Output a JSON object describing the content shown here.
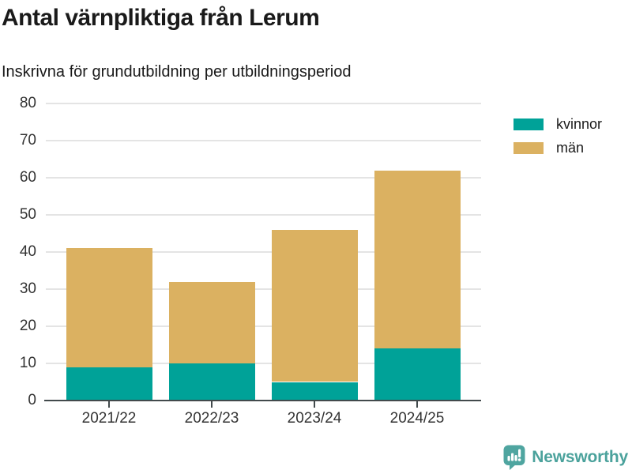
{
  "chart_data": {
    "type": "bar",
    "stacked": true,
    "title": "Antal värnpliktiga från Lerum",
    "subtitle": "Inskrivna för grundutbildning per utbildningsperiod",
    "categories": [
      "2021/22",
      "2022/23",
      "2023/24",
      "2024/25"
    ],
    "series": [
      {
        "name": "kvinnor",
        "color": "#00a298",
        "values": [
          9,
          10,
          5,
          14
        ]
      },
      {
        "name": "män",
        "color": "#dbb161",
        "values": [
          32,
          22,
          41,
          48
        ]
      }
    ],
    "ylim": [
      0,
      80
    ],
    "yticks": [
      0,
      10,
      20,
      30,
      40,
      50,
      60,
      70,
      80
    ],
    "grid": true,
    "legend_position": "right"
  },
  "footer": {
    "brand": "Newsworthy",
    "brand_color": "#4ba29c"
  }
}
